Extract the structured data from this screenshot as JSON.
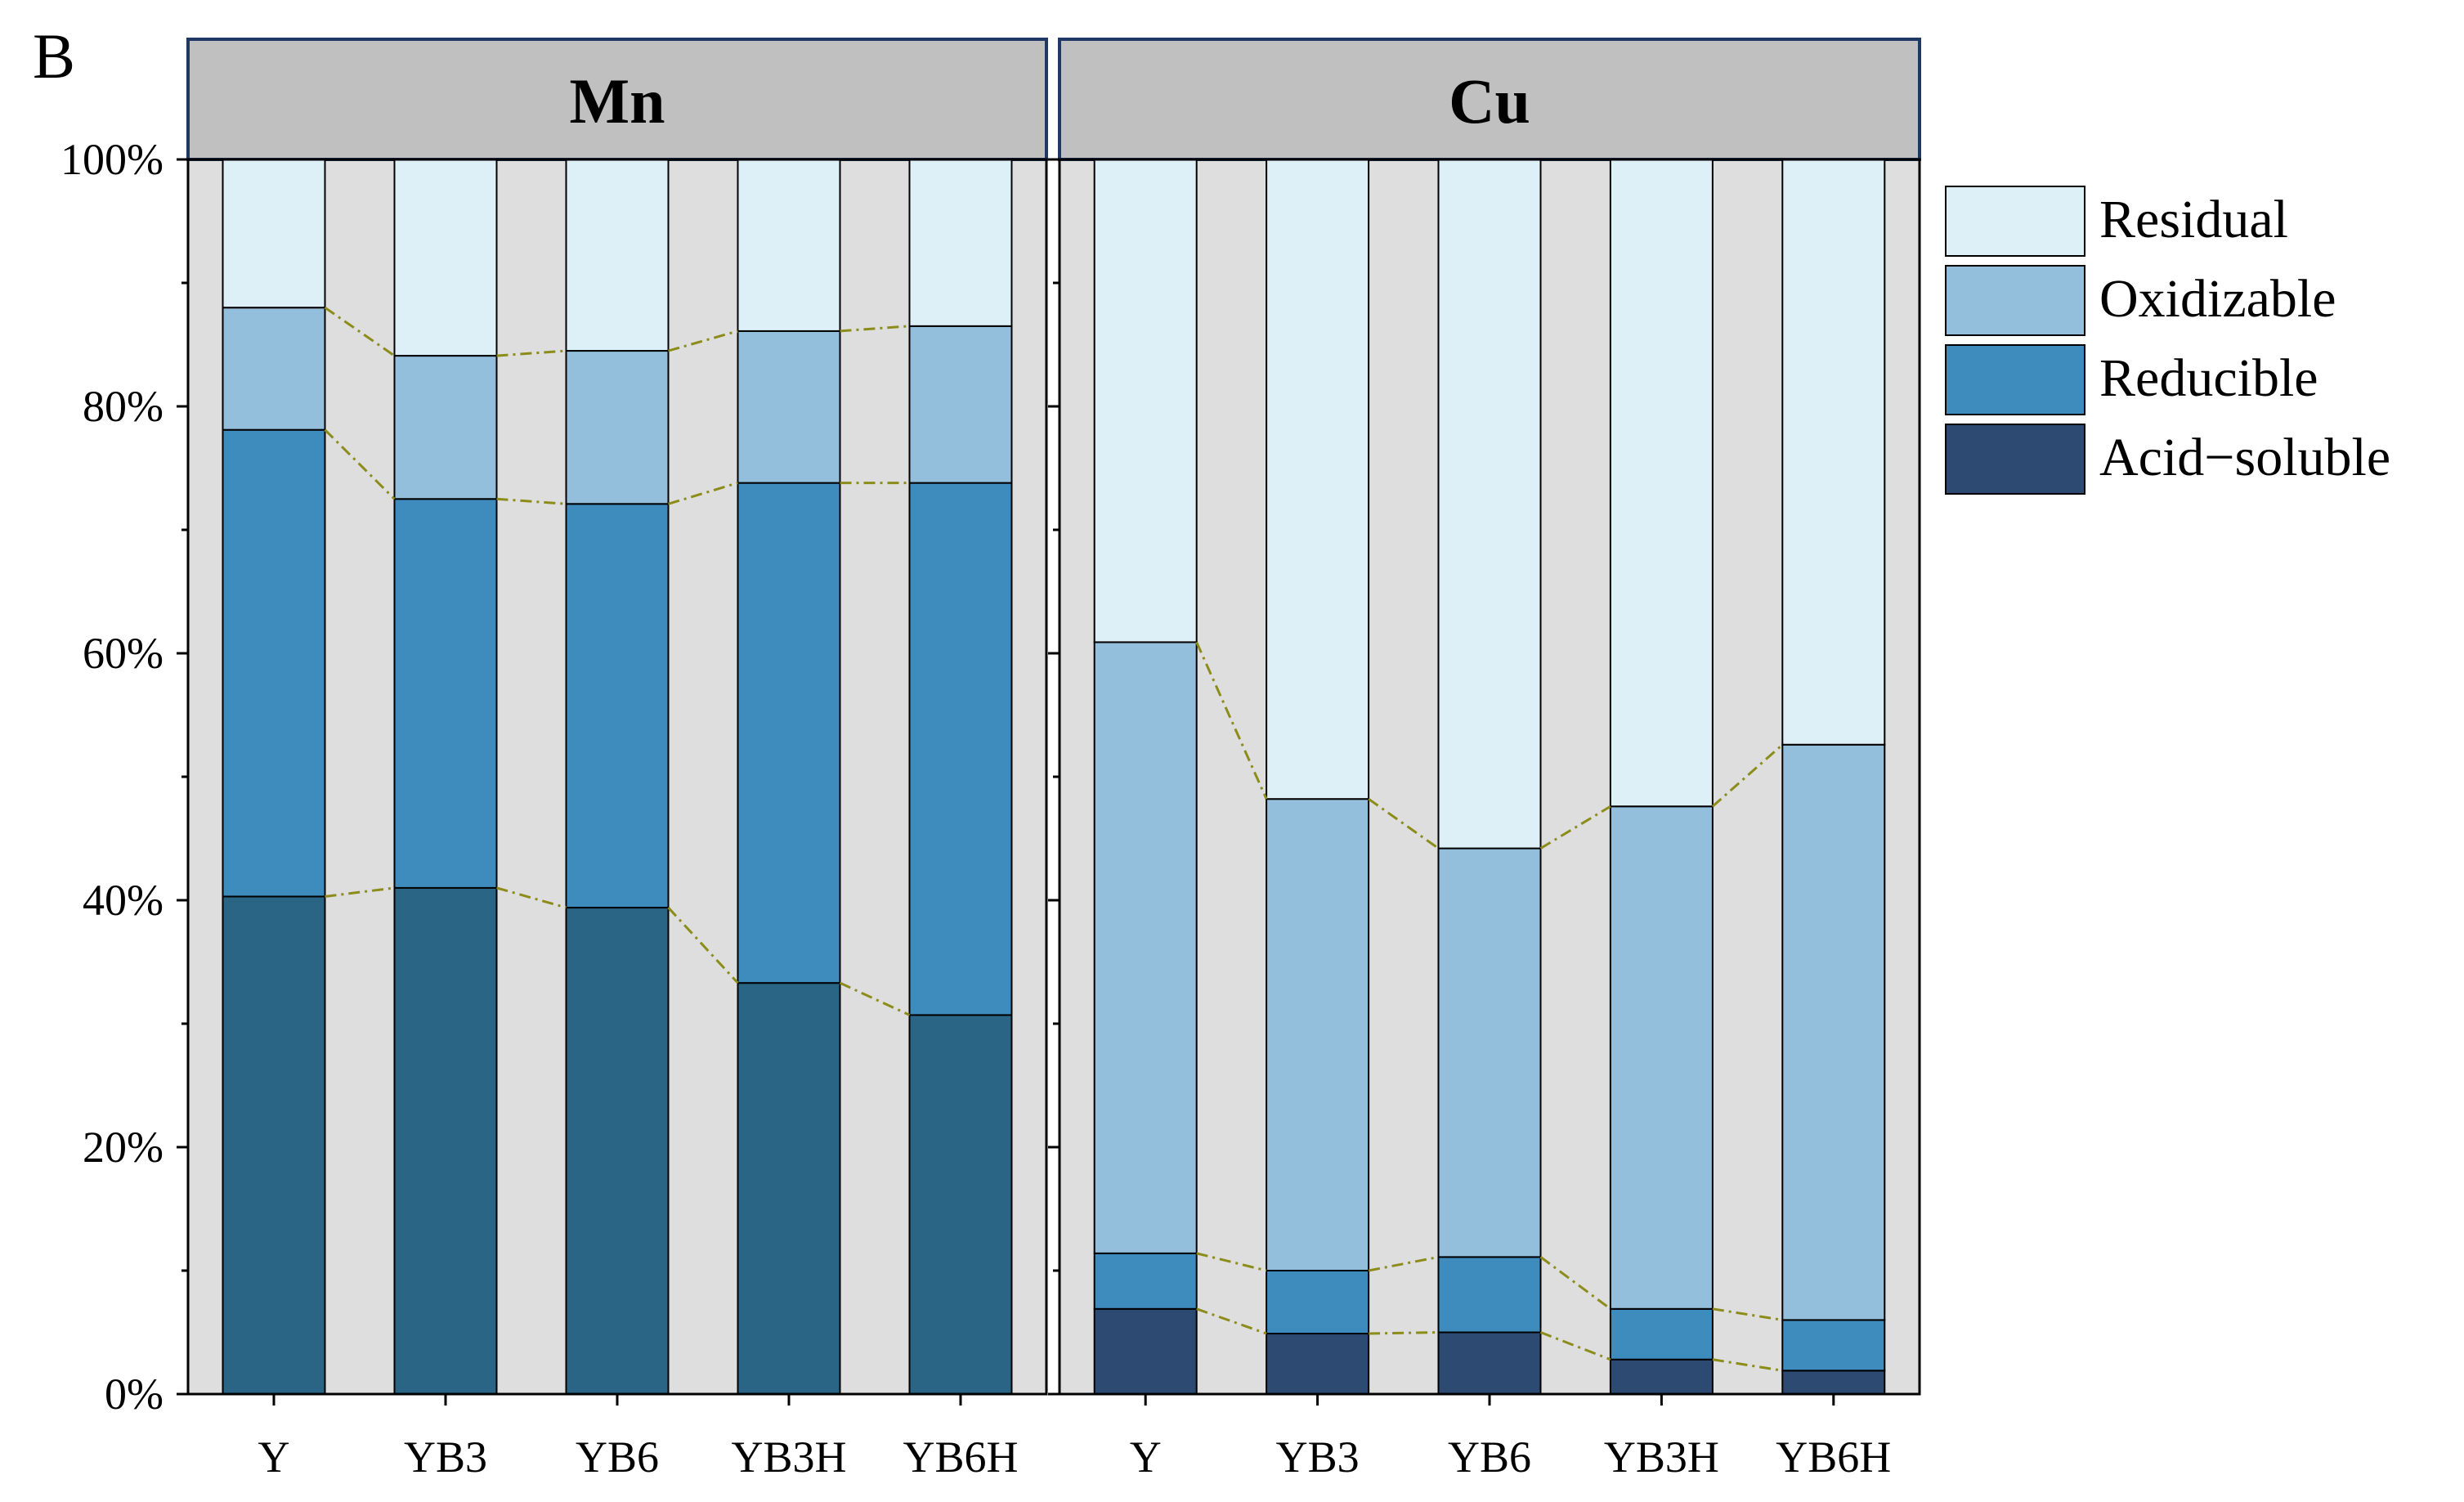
{
  "figure_label": "B",
  "chart_data": {
    "type": "bar",
    "stacked": true,
    "normalized": true,
    "categories": [
      "Y",
      "YB3",
      "YB6",
      "YB3H",
      "YB6H"
    ],
    "y_tick_labels": [
      "0%",
      "20%",
      "40%",
      "60%",
      "80%",
      "100%"
    ],
    "ylim": [
      0,
      100
    ],
    "legend": {
      "position": "right",
      "entries": [
        "Residual",
        "Oxidizable",
        "Reducible",
        "Acid−soluble"
      ]
    },
    "colors": {
      "plot_background": "#dedede",
      "header_background": "#c0c0c0",
      "frame": "#1f3864",
      "connector": "#8c8c1a",
      "residual": "#ddf0f8",
      "oxidizable": "#93bedc",
      "reducible": "#3e8cbe",
      "acid_soluble_mn": "#2a6585",
      "acid_soluble_cu": "#2c4a72",
      "legend_acid_soluble": "#2c4a72"
    },
    "panels": [
      {
        "title": "Mn",
        "series": [
          {
            "name": "Acid−soluble",
            "values": [
              40.3,
              41.0,
              39.4,
              33.3,
              30.7
            ]
          },
          {
            "name": "Reducible",
            "values": [
              37.8,
              31.5,
              32.7,
              40.5,
              43.1
            ]
          },
          {
            "name": "Oxidizable",
            "values": [
              9.9,
              11.6,
              12.4,
              12.3,
              12.7
            ]
          },
          {
            "name": "Residual",
            "values": [
              12.0,
              15.9,
              15.5,
              13.9,
              13.5
            ]
          }
        ]
      },
      {
        "title": "Cu",
        "series": [
          {
            "name": "Acid−soluble",
            "values": [
              6.9,
              4.9,
              5.0,
              2.8,
              1.9
            ]
          },
          {
            "name": "Reducible",
            "values": [
              4.5,
              5.1,
              6.1,
              4.1,
              4.1
            ]
          },
          {
            "name": "Oxidizable",
            "values": [
              49.5,
              38.2,
              33.1,
              40.7,
              46.6
            ]
          },
          {
            "name": "Residual",
            "values": [
              39.1,
              51.8,
              55.8,
              52.4,
              47.4
            ]
          }
        ]
      }
    ]
  }
}
